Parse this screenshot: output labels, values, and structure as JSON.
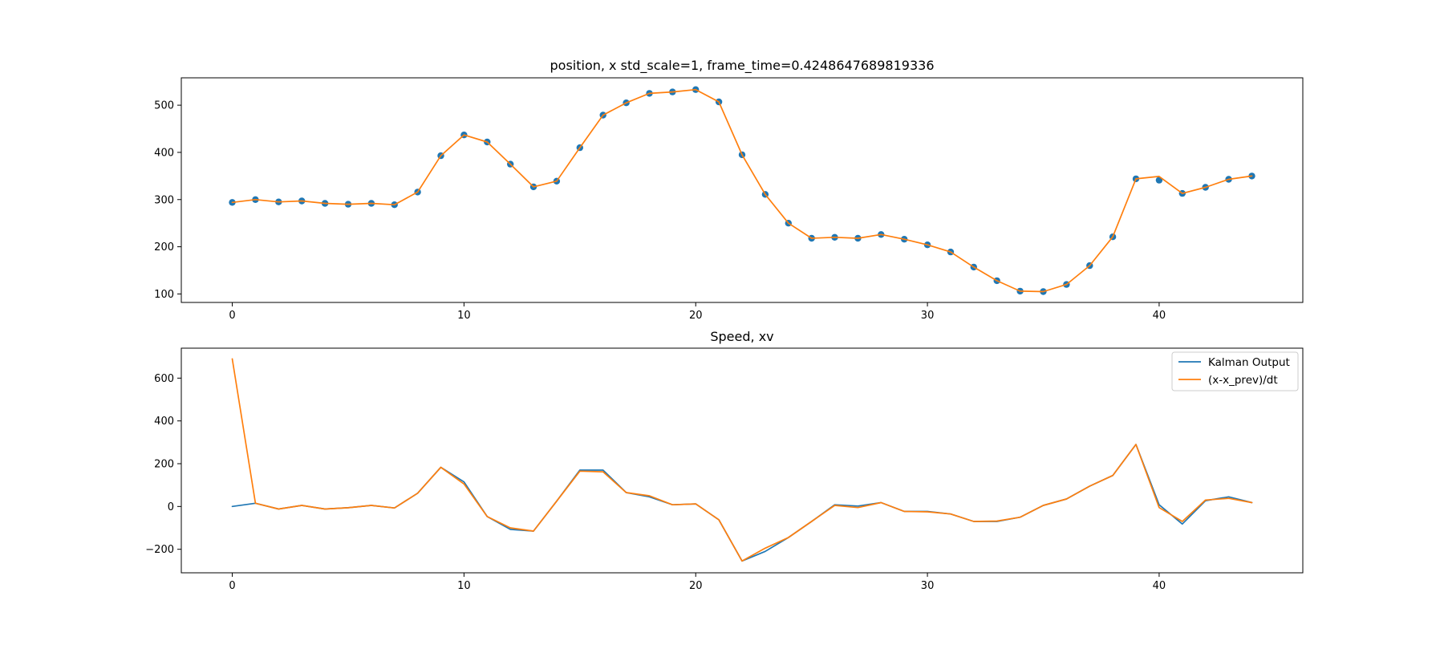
{
  "colors": {
    "kalman": "#1f77b4",
    "diff": "#ff7f0e",
    "axes": "#000000",
    "background": "#ffffff",
    "legend_border": "#cccccc"
  },
  "chart_data": [
    {
      "type": "line",
      "title": "position, x  std_scale=1, frame_time=0.4248647689819336",
      "xlabel": "",
      "ylabel": "",
      "xlim": [
        -2.2,
        46.2
      ],
      "ylim": [
        82,
        558
      ],
      "xticks": [
        0,
        10,
        20,
        30,
        40
      ],
      "xtick_labels": [
        "0",
        "10",
        "20",
        "30",
        "40"
      ],
      "yticks": [
        100,
        200,
        300,
        400,
        500
      ],
      "ytick_labels": [
        "100",
        "200",
        "300",
        "400",
        "500"
      ],
      "grid": false,
      "x": [
        0,
        1,
        2,
        3,
        4,
        5,
        6,
        7,
        8,
        9,
        10,
        11,
        12,
        13,
        14,
        15,
        16,
        17,
        18,
        19,
        20,
        21,
        22,
        23,
        24,
        25,
        26,
        27,
        28,
        29,
        30,
        31,
        32,
        33,
        34,
        35,
        36,
        37,
        38,
        39,
        40,
        41,
        42,
        43,
        44
      ],
      "series": [
        {
          "style": "scatter",
          "color_key": "kalman",
          "values": [
            294,
            300,
            295,
            297,
            292,
            290,
            292,
            289,
            316,
            393,
            437,
            422,
            375,
            327,
            339,
            410,
            479,
            505,
            525,
            528,
            533,
            507,
            395,
            311,
            250,
            218,
            220,
            218,
            226,
            216,
            204,
            189,
            157,
            128,
            106,
            105,
            120,
            160,
            221,
            344,
            341,
            313,
            326,
            343,
            350
          ]
        },
        {
          "style": "line",
          "color_key": "diff",
          "values": [
            294,
            300,
            295,
            297,
            292,
            290,
            292,
            289,
            316,
            393,
            437,
            422,
            375,
            327,
            339,
            410,
            479,
            505,
            525,
            528,
            533,
            507,
            395,
            311,
            250,
            218,
            220,
            218,
            226,
            216,
            204,
            189,
            157,
            128,
            106,
            105,
            120,
            160,
            221,
            344,
            349,
            313,
            326,
            343,
            350
          ]
        }
      ]
    },
    {
      "type": "line",
      "title": "Speed, xv",
      "xlabel": "",
      "ylabel": "",
      "xlim": [
        -2.2,
        46.2
      ],
      "ylim": [
        -310,
        740
      ],
      "xticks": [
        0,
        10,
        20,
        30,
        40
      ],
      "xtick_labels": [
        "0",
        "10",
        "20",
        "30",
        "40"
      ],
      "yticks": [
        -200,
        0,
        200,
        400,
        600
      ],
      "ytick_labels": [
        "−200",
        "0",
        "200",
        "400",
        "600"
      ],
      "grid": false,
      "legend": "top-right",
      "x": [
        0,
        1,
        2,
        3,
        4,
        5,
        6,
        7,
        8,
        9,
        10,
        11,
        12,
        13,
        14,
        15,
        16,
        17,
        18,
        19,
        20,
        21,
        22,
        23,
        24,
        25,
        26,
        27,
        28,
        29,
        30,
        31,
        32,
        33,
        34,
        35,
        36,
        37,
        38,
        39,
        40,
        41,
        42,
        43,
        44
      ],
      "series": [
        {
          "name": "Kalman Output",
          "style": "line",
          "color_key": "kalman",
          "values": [
            0,
            15,
            -12,
            5,
            -12,
            -6,
            5,
            -7,
            62,
            183,
            115,
            -47,
            -107,
            -115,
            25,
            170,
            170,
            65,
            45,
            8,
            12,
            -62,
            -255,
            -210,
            -145,
            -70,
            8,
            2,
            18,
            -23,
            -23,
            -35,
            -70,
            -70,
            -50,
            5,
            35,
            95,
            145,
            290,
            8,
            -82,
            27,
            45,
            18
          ]
        },
        {
          "name": "(x-x_prev)/dt",
          "style": "line",
          "color_key": "diff",
          "values": [
            690,
            15,
            -12,
            5,
            -12,
            -6,
            5,
            -7,
            62,
            183,
            105,
            -47,
            -100,
            -115,
            25,
            165,
            162,
            65,
            50,
            8,
            12,
            -62,
            -255,
            -195,
            -145,
            -70,
            5,
            -5,
            18,
            -23,
            -25,
            -35,
            -70,
            -68,
            -50,
            5,
            35,
            95,
            145,
            290,
            -5,
            -70,
            30,
            38,
            18
          ]
        }
      ]
    }
  ]
}
